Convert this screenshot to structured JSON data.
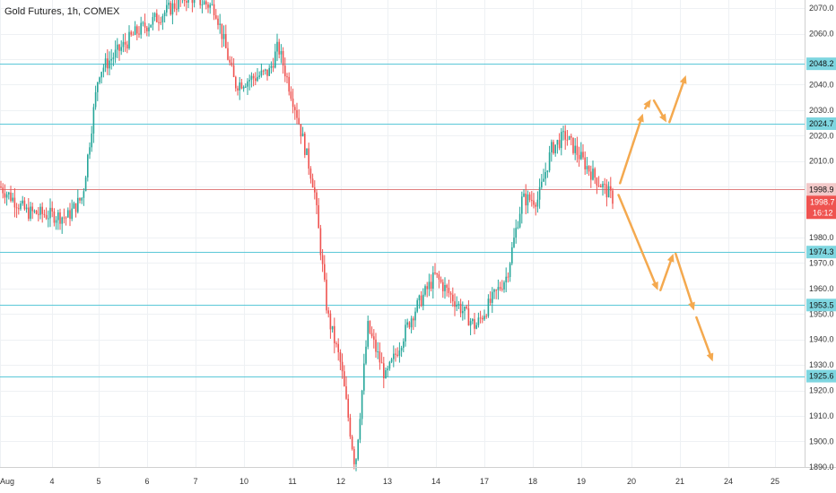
{
  "chart_data": {
    "type": "candlestick",
    "title": "Gold Futures, 1h, COMEX",
    "ylim": [
      1885,
      2075
    ],
    "y_ticks": [
      1890.0,
      1900.0,
      1910.0,
      1920.0,
      1930.0,
      1940.0,
      1950.0,
      1960.0,
      1970.0,
      1980.0,
      1990.0,
      2000.0,
      2010.0,
      2020.0,
      2030.0,
      2040.0,
      2050.0,
      2060.0,
      2070.0
    ],
    "x_ticks": [
      "Aug",
      "4",
      "5",
      "6",
      "7",
      "10",
      "11",
      "12",
      "13",
      "14",
      "17",
      "18",
      "19",
      "20",
      "21",
      "24",
      "25"
    ],
    "grid": true,
    "colors": {
      "up": "#26a69a",
      "down": "#ef5350",
      "level": "#5bc8d8",
      "label_bg": "#7ed6e0",
      "price_line": "#e08080",
      "price_label": "#ef5350",
      "arrow": "#f4a94f"
    },
    "horizontal_levels": [
      2048.2,
      2024.7,
      1974.3,
      1953.5,
      1925.6
    ],
    "current_level": 1998.9,
    "last_price": "1998.7",
    "countdown": "16:12",
    "series_anchor": [
      {
        "t": 0,
        "p": 2000
      },
      {
        "t": 30,
        "p": 1990
      },
      {
        "t": 75,
        "p": 1988
      },
      {
        "t": 92,
        "p": 1996
      },
      {
        "t": 110,
        "p": 2045
      },
      {
        "t": 150,
        "p": 2060
      },
      {
        "t": 190,
        "p": 2070
      },
      {
        "t": 210,
        "p": 2075
      },
      {
        "t": 240,
        "p": 2070
      },
      {
        "t": 262,
        "p": 2040
      },
      {
        "t": 300,
        "p": 2045
      },
      {
        "t": 310,
        "p": 2055
      },
      {
        "t": 330,
        "p": 2030
      },
      {
        "t": 350,
        "p": 2000
      },
      {
        "t": 365,
        "p": 1950
      },
      {
        "t": 380,
        "p": 1930
      },
      {
        "t": 396,
        "p": 1890
      },
      {
        "t": 410,
        "p": 1945
      },
      {
        "t": 430,
        "p": 1925
      },
      {
        "t": 460,
        "p": 1950
      },
      {
        "t": 485,
        "p": 1965
      },
      {
        "t": 530,
        "p": 1945
      },
      {
        "t": 565,
        "p": 1965
      },
      {
        "t": 582,
        "p": 1995
      },
      {
        "t": 600,
        "p": 1995
      },
      {
        "t": 615,
        "p": 2015
      },
      {
        "t": 630,
        "p": 2020
      },
      {
        "t": 660,
        "p": 2005
      },
      {
        "t": 684,
        "p": 1995
      }
    ],
    "projection_paths": [
      [
        {
          "t": 690,
          "p": 2000
        },
        {
          "t": 718,
          "p": 2030
        },
        {
          "t": 727,
          "p": 2035
        },
        {
          "t": 745,
          "p": 2024
        },
        {
          "t": 766,
          "p": 2045
        }
      ],
      [
        {
          "t": 688,
          "p": 1998
        },
        {
          "t": 735,
          "p": 1958
        },
        {
          "t": 752,
          "p": 1975
        },
        {
          "t": 775,
          "p": 1950
        },
        {
          "t": 796,
          "p": 1930
        }
      ]
    ]
  }
}
